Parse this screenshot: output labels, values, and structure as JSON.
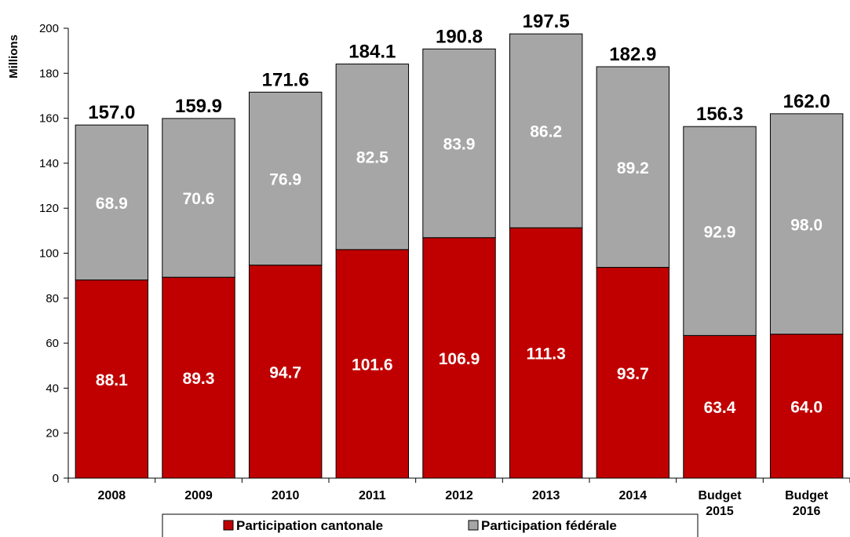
{
  "chart_data": {
    "type": "bar",
    "stacked": true,
    "categories": [
      "2008",
      "2009",
      "2010",
      "2011",
      "2012",
      "2013",
      "2014",
      "Budget\n2015",
      "Budget\n2016"
    ],
    "series": [
      {
        "name": "Participation cantonale",
        "color": "#c00000",
        "values": [
          88.1,
          89.3,
          94.7,
          101.6,
          106.9,
          111.3,
          93.7,
          63.4,
          64.0
        ]
      },
      {
        "name": "Participation fédérale",
        "color": "#a6a6a6",
        "values": [
          68.9,
          70.6,
          76.9,
          82.5,
          83.9,
          86.2,
          89.2,
          92.9,
          98.0
        ]
      }
    ],
    "totals": [
      157.0,
      159.9,
      171.6,
      184.1,
      190.8,
      197.5,
      182.9,
      156.3,
      162.0
    ],
    "ylabel": "Millions",
    "ylim": [
      0,
      200
    ],
    "yticks": [
      0,
      20,
      40,
      60,
      80,
      100,
      120,
      140,
      160,
      180,
      200
    ],
    "grid": false,
    "legend_position": "bottom"
  }
}
